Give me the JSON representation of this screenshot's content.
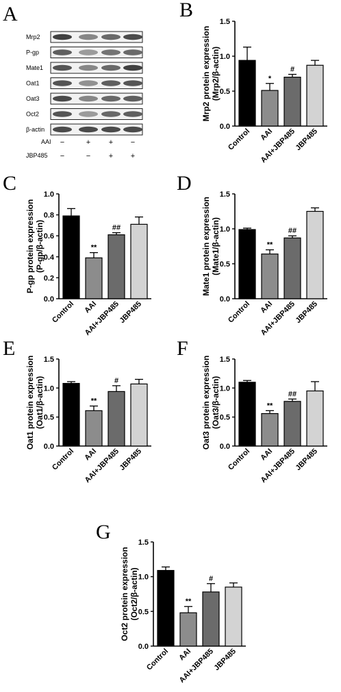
{
  "blot": {
    "letter": "A",
    "proteins": [
      "Mrp2",
      "P-gp",
      "Mate1",
      "Oat1",
      "Oat3",
      "Oct2",
      "β-actin"
    ],
    "conditions": [
      {
        "label": "AAI",
        "marks": [
          "−",
          "+",
          "+",
          "−"
        ]
      },
      {
        "label": "JBP485",
        "marks": [
          "−",
          "−",
          "+",
          "+"
        ]
      }
    ]
  },
  "chart_data": [
    {
      "letter": "B",
      "type": "bar",
      "categories": [
        "Control",
        "AAI",
        "AAI+JBP485",
        "JBP485"
      ],
      "values": [
        0.94,
        0.51,
        0.7,
        0.87
      ],
      "errors": [
        0.19,
        0.1,
        0.04,
        0.07
      ],
      "significance": [
        "",
        "*",
        "#",
        ""
      ],
      "ylabel": [
        "Mrp2 protein expression",
        "(Mrp2/β-actin)"
      ],
      "ylim": [
        0,
        1.5
      ],
      "yticks": [
        "0.0",
        "0.5",
        "1.0",
        "1.5"
      ],
      "colors": [
        "#000000",
        "#8c8c8c",
        "#6b6b6b",
        "#d3d3d3"
      ]
    },
    {
      "letter": "C",
      "type": "bar",
      "categories": [
        "Control",
        "AAI",
        "AAI+JBP485",
        "JBP485"
      ],
      "values": [
        0.79,
        0.39,
        0.61,
        0.71
      ],
      "errors": [
        0.07,
        0.05,
        0.02,
        0.07
      ],
      "significance": [
        "",
        "**",
        "##",
        ""
      ],
      "ylabel": [
        "P-gp protein expression",
        "(P-gp/β-actin)"
      ],
      "ylim": [
        0,
        1.0
      ],
      "yticks": [
        "0.0",
        "0.2",
        "0.4",
        "0.6",
        "0.8",
        "1.0"
      ],
      "colors": [
        "#000000",
        "#8c8c8c",
        "#6b6b6b",
        "#d3d3d3"
      ]
    },
    {
      "letter": "D",
      "type": "bar",
      "categories": [
        "Control",
        "AAI",
        "AAI+JBP485",
        "JBP485"
      ],
      "values": [
        0.99,
        0.64,
        0.87,
        1.25
      ],
      "errors": [
        0.02,
        0.06,
        0.03,
        0.05
      ],
      "significance": [
        "",
        "**",
        "##",
        ""
      ],
      "ylabel": [
        "Mate1 protein expression",
        "(Mate1/β-actin)"
      ],
      "ylim": [
        0,
        1.5
      ],
      "yticks": [
        "0.0",
        "0.5",
        "1.0",
        "1.5"
      ],
      "colors": [
        "#000000",
        "#8c8c8c",
        "#6b6b6b",
        "#d3d3d3"
      ]
    },
    {
      "letter": "E",
      "type": "bar",
      "categories": [
        "Control",
        "AAI",
        "AAI+JBP485",
        "JBP485"
      ],
      "values": [
        1.08,
        0.61,
        0.94,
        1.07
      ],
      "errors": [
        0.03,
        0.08,
        0.1,
        0.08
      ],
      "significance": [
        "",
        "**",
        "#",
        ""
      ],
      "ylabel": [
        "Oat1 protein expression",
        "(Oat1/β-actin)"
      ],
      "ylim": [
        0,
        1.5
      ],
      "yticks": [
        "0.0",
        "0.5",
        "1.0",
        "1.5"
      ],
      "colors": [
        "#000000",
        "#8c8c8c",
        "#6b6b6b",
        "#d3d3d3"
      ]
    },
    {
      "letter": "F",
      "type": "bar",
      "categories": [
        "Control",
        "AAI",
        "AAI+JBP485",
        "JBP485"
      ],
      "values": [
        1.1,
        0.56,
        0.77,
        0.95
      ],
      "errors": [
        0.03,
        0.05,
        0.04,
        0.16
      ],
      "significance": [
        "",
        "**",
        "##",
        ""
      ],
      "ylabel": [
        "Oat3 protein expression",
        "(Oat3/β-actin)"
      ],
      "ylim": [
        0,
        1.5
      ],
      "yticks": [
        "0.0",
        "0.5",
        "1.0",
        "1.5"
      ],
      "colors": [
        "#000000",
        "#8c8c8c",
        "#6b6b6b",
        "#d3d3d3"
      ]
    },
    {
      "letter": "G",
      "type": "bar",
      "categories": [
        "Control",
        "AAI",
        "AAI+JBP485",
        "JBP485"
      ],
      "values": [
        1.09,
        0.48,
        0.78,
        0.85
      ],
      "errors": [
        0.05,
        0.09,
        0.12,
        0.06
      ],
      "significance": [
        "",
        "**",
        "#",
        ""
      ],
      "ylabel": [
        "Oct2 protein expression",
        "(Oct2/β-actin)"
      ],
      "ylim": [
        0,
        1.5
      ],
      "yticks": [
        "0.0",
        "0.5",
        "1.0",
        "1.5"
      ],
      "colors": [
        "#000000",
        "#8c8c8c",
        "#6b6b6b",
        "#d3d3d3"
      ]
    }
  ]
}
